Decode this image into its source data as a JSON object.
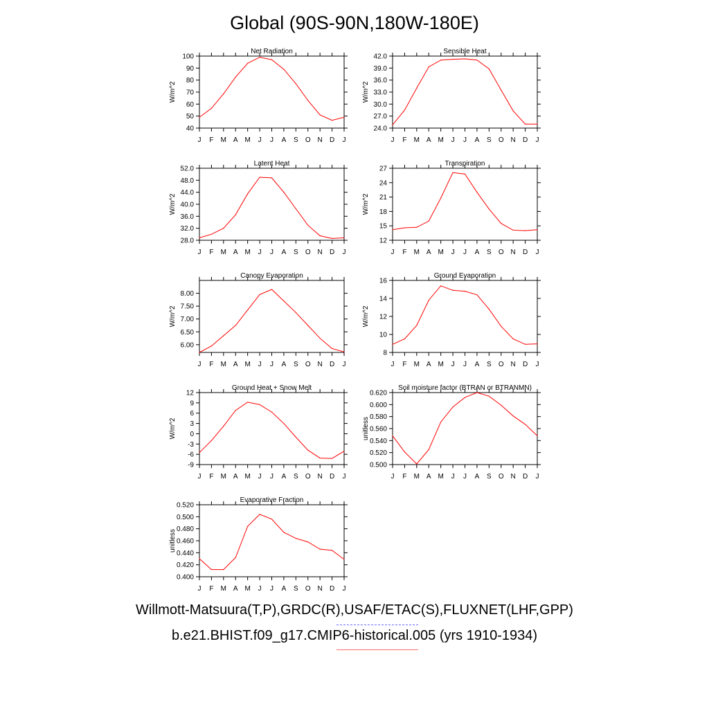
{
  "title": "Global (90S-90N,180W-180E)",
  "footer": {
    "obs_label": "Willmott-Matsuura(T,P),GRDC(R),USAF/ETAC(S),FLUXNET(LHF,GPP)",
    "model_label": "b.e21.BHIST.f09_g17.CMIP6-historical.005 (yrs 1910-1934)"
  },
  "colors": {
    "series": "#ff0000",
    "obs_legend": "#6b6bff",
    "model_legend": "#ff6b6b",
    "axis": "#000000"
  },
  "chart_data": [
    {
      "type": "line",
      "title": "Net Radiation",
      "ylabel": "W/m^2",
      "categories": [
        "J",
        "F",
        "M",
        "A",
        "M",
        "J",
        "J",
        "A",
        "S",
        "O",
        "N",
        "D",
        "J"
      ],
      "ylim": [
        40,
        100
      ],
      "yticks": [
        40,
        50,
        60,
        70,
        80,
        90,
        100
      ],
      "ytick_labels": [
        "40",
        "50",
        "60",
        "70",
        "80",
        "90",
        "100"
      ],
      "series": [
        {
          "values": [
            49,
            56.5,
            68.5,
            82.5,
            94,
            99,
            97,
            89,
            77,
            63,
            51,
            46.5,
            49
          ]
        }
      ]
    },
    {
      "type": "line",
      "title": "Sensible Heat",
      "ylabel": "W/m^2",
      "categories": [
        "J",
        "F",
        "M",
        "A",
        "M",
        "J",
        "J",
        "A",
        "S",
        "O",
        "N",
        "D",
        "J"
      ],
      "ylim": [
        24,
        42
      ],
      "yticks": [
        24,
        27,
        30,
        33,
        36,
        39,
        42
      ],
      "ytick_labels": [
        "24.0",
        "27.0",
        "30.0",
        "33.0",
        "36.0",
        "39.0",
        "42.0"
      ],
      "series": [
        {
          "values": [
            24.8,
            28.5,
            34,
            39.3,
            41,
            41.2,
            41.3,
            41,
            38.8,
            33.5,
            28.3,
            25,
            25
          ]
        }
      ]
    },
    {
      "type": "line",
      "title": "Latent Heat",
      "ylabel": "W/m^2",
      "categories": [
        "J",
        "F",
        "M",
        "A",
        "M",
        "J",
        "J",
        "A",
        "S",
        "O",
        "N",
        "D",
        "J"
      ],
      "ylim": [
        28,
        52
      ],
      "yticks": [
        28,
        32,
        36,
        40,
        44,
        48,
        52
      ],
      "ytick_labels": [
        "28.0",
        "32.0",
        "36.0",
        "40.0",
        "44.0",
        "48.0",
        "52.0"
      ],
      "series": [
        {
          "values": [
            28.8,
            30,
            32,
            36.5,
            43.5,
            49,
            48.8,
            44,
            38.5,
            33,
            29.5,
            28.6,
            28.8
          ]
        }
      ]
    },
    {
      "type": "line",
      "title": "Transpiration",
      "ylabel": "W/m^2",
      "categories": [
        "J",
        "F",
        "M",
        "A",
        "M",
        "J",
        "J",
        "A",
        "S",
        "O",
        "N",
        "D",
        "J"
      ],
      "ylim": [
        12,
        27
      ],
      "yticks": [
        12,
        15,
        18,
        21,
        24,
        27
      ],
      "ytick_labels": [
        "12",
        "15",
        "18",
        "21",
        "24",
        "27"
      ],
      "series": [
        {
          "values": [
            14.2,
            14.6,
            14.7,
            16,
            20.8,
            26.1,
            25.8,
            22,
            18.5,
            15.5,
            14.1,
            14,
            14.2
          ]
        }
      ]
    },
    {
      "type": "line",
      "title": "Canopy Evaporation",
      "ylabel": "W/m^2",
      "categories": [
        "J",
        "F",
        "M",
        "A",
        "M",
        "J",
        "J",
        "A",
        "S",
        "O",
        "N",
        "D",
        "J"
      ],
      "ylim": [
        5.7,
        8.5
      ],
      "yticks": [
        6,
        6.5,
        7,
        7.5,
        8
      ],
      "ytick_labels": [
        "6.00",
        "6.50",
        "7.00",
        "7.50",
        "8.00"
      ],
      "series": [
        {
          "values": [
            5.7,
            5.95,
            6.35,
            6.75,
            7.35,
            7.95,
            8.15,
            7.7,
            7.25,
            6.75,
            6.25,
            5.85,
            5.72
          ]
        }
      ]
    },
    {
      "type": "line",
      "title": "Ground Evaporation",
      "ylabel": "W/m^2",
      "categories": [
        "J",
        "F",
        "M",
        "A",
        "M",
        "J",
        "J",
        "A",
        "S",
        "O",
        "N",
        "D",
        "J"
      ],
      "ylim": [
        8,
        16
      ],
      "yticks": [
        8,
        10,
        12,
        14,
        16
      ],
      "ytick_labels": [
        "8",
        "10",
        "12",
        "14",
        "16"
      ],
      "series": [
        {
          "values": [
            8.9,
            9.5,
            11,
            13.8,
            15.4,
            14.9,
            14.8,
            14.4,
            12.8,
            10.9,
            9.5,
            8.9,
            8.95
          ]
        }
      ]
    },
    {
      "type": "line",
      "title": "Ground Heat + Snow Melt",
      "ylabel": "W/m^2",
      "categories": [
        "J",
        "F",
        "M",
        "A",
        "M",
        "J",
        "J",
        "A",
        "S",
        "O",
        "N",
        "D",
        "J"
      ],
      "ylim": [
        -9,
        12
      ],
      "yticks": [
        -9,
        -6,
        -3,
        0,
        3,
        6,
        9,
        12
      ],
      "ytick_labels": [
        "-9",
        "-6",
        "-3",
        "0",
        "3",
        "6",
        "9",
        "12"
      ],
      "series": [
        {
          "values": [
            -5.5,
            -2,
            2.2,
            6.8,
            9.2,
            8.5,
            6.3,
            3,
            -1,
            -4.8,
            -7.1,
            -7.2,
            -5.1
          ]
        }
      ]
    },
    {
      "type": "line",
      "title": "Soil moisture factor (BTRAN or BTRANMN)",
      "ylabel": "unitless",
      "categories": [
        "J",
        "F",
        "M",
        "A",
        "M",
        "J",
        "J",
        "A",
        "S",
        "O",
        "N",
        "D",
        "J"
      ],
      "ylim": [
        0.5,
        0.62
      ],
      "yticks": [
        0.5,
        0.52,
        0.54,
        0.56,
        0.58,
        0.6,
        0.62
      ],
      "ytick_labels": [
        "0.500",
        "0.520",
        "0.540",
        "0.560",
        "0.580",
        "0.600",
        "0.620"
      ],
      "series": [
        {
          "values": [
            0.548,
            0.521,
            0.501,
            0.525,
            0.571,
            0.596,
            0.612,
            0.62,
            0.614,
            0.599,
            0.581,
            0.567,
            0.548
          ]
        }
      ]
    },
    {
      "type": "line",
      "title": "Evaporative Fraction",
      "ylabel": "unitless",
      "categories": [
        "J",
        "F",
        "M",
        "A",
        "M",
        "J",
        "J",
        "A",
        "S",
        "O",
        "N",
        "D",
        "J"
      ],
      "ylim": [
        0.4,
        0.52
      ],
      "yticks": [
        0.4,
        0.42,
        0.44,
        0.46,
        0.48,
        0.5,
        0.52
      ],
      "ytick_labels": [
        "0.400",
        "0.420",
        "0.440",
        "0.460",
        "0.480",
        "0.500",
        "0.520"
      ],
      "series": [
        {
          "values": [
            0.43,
            0.412,
            0.412,
            0.432,
            0.484,
            0.504,
            0.496,
            0.474,
            0.464,
            0.458,
            0.446,
            0.444,
            0.429
          ]
        }
      ]
    }
  ]
}
